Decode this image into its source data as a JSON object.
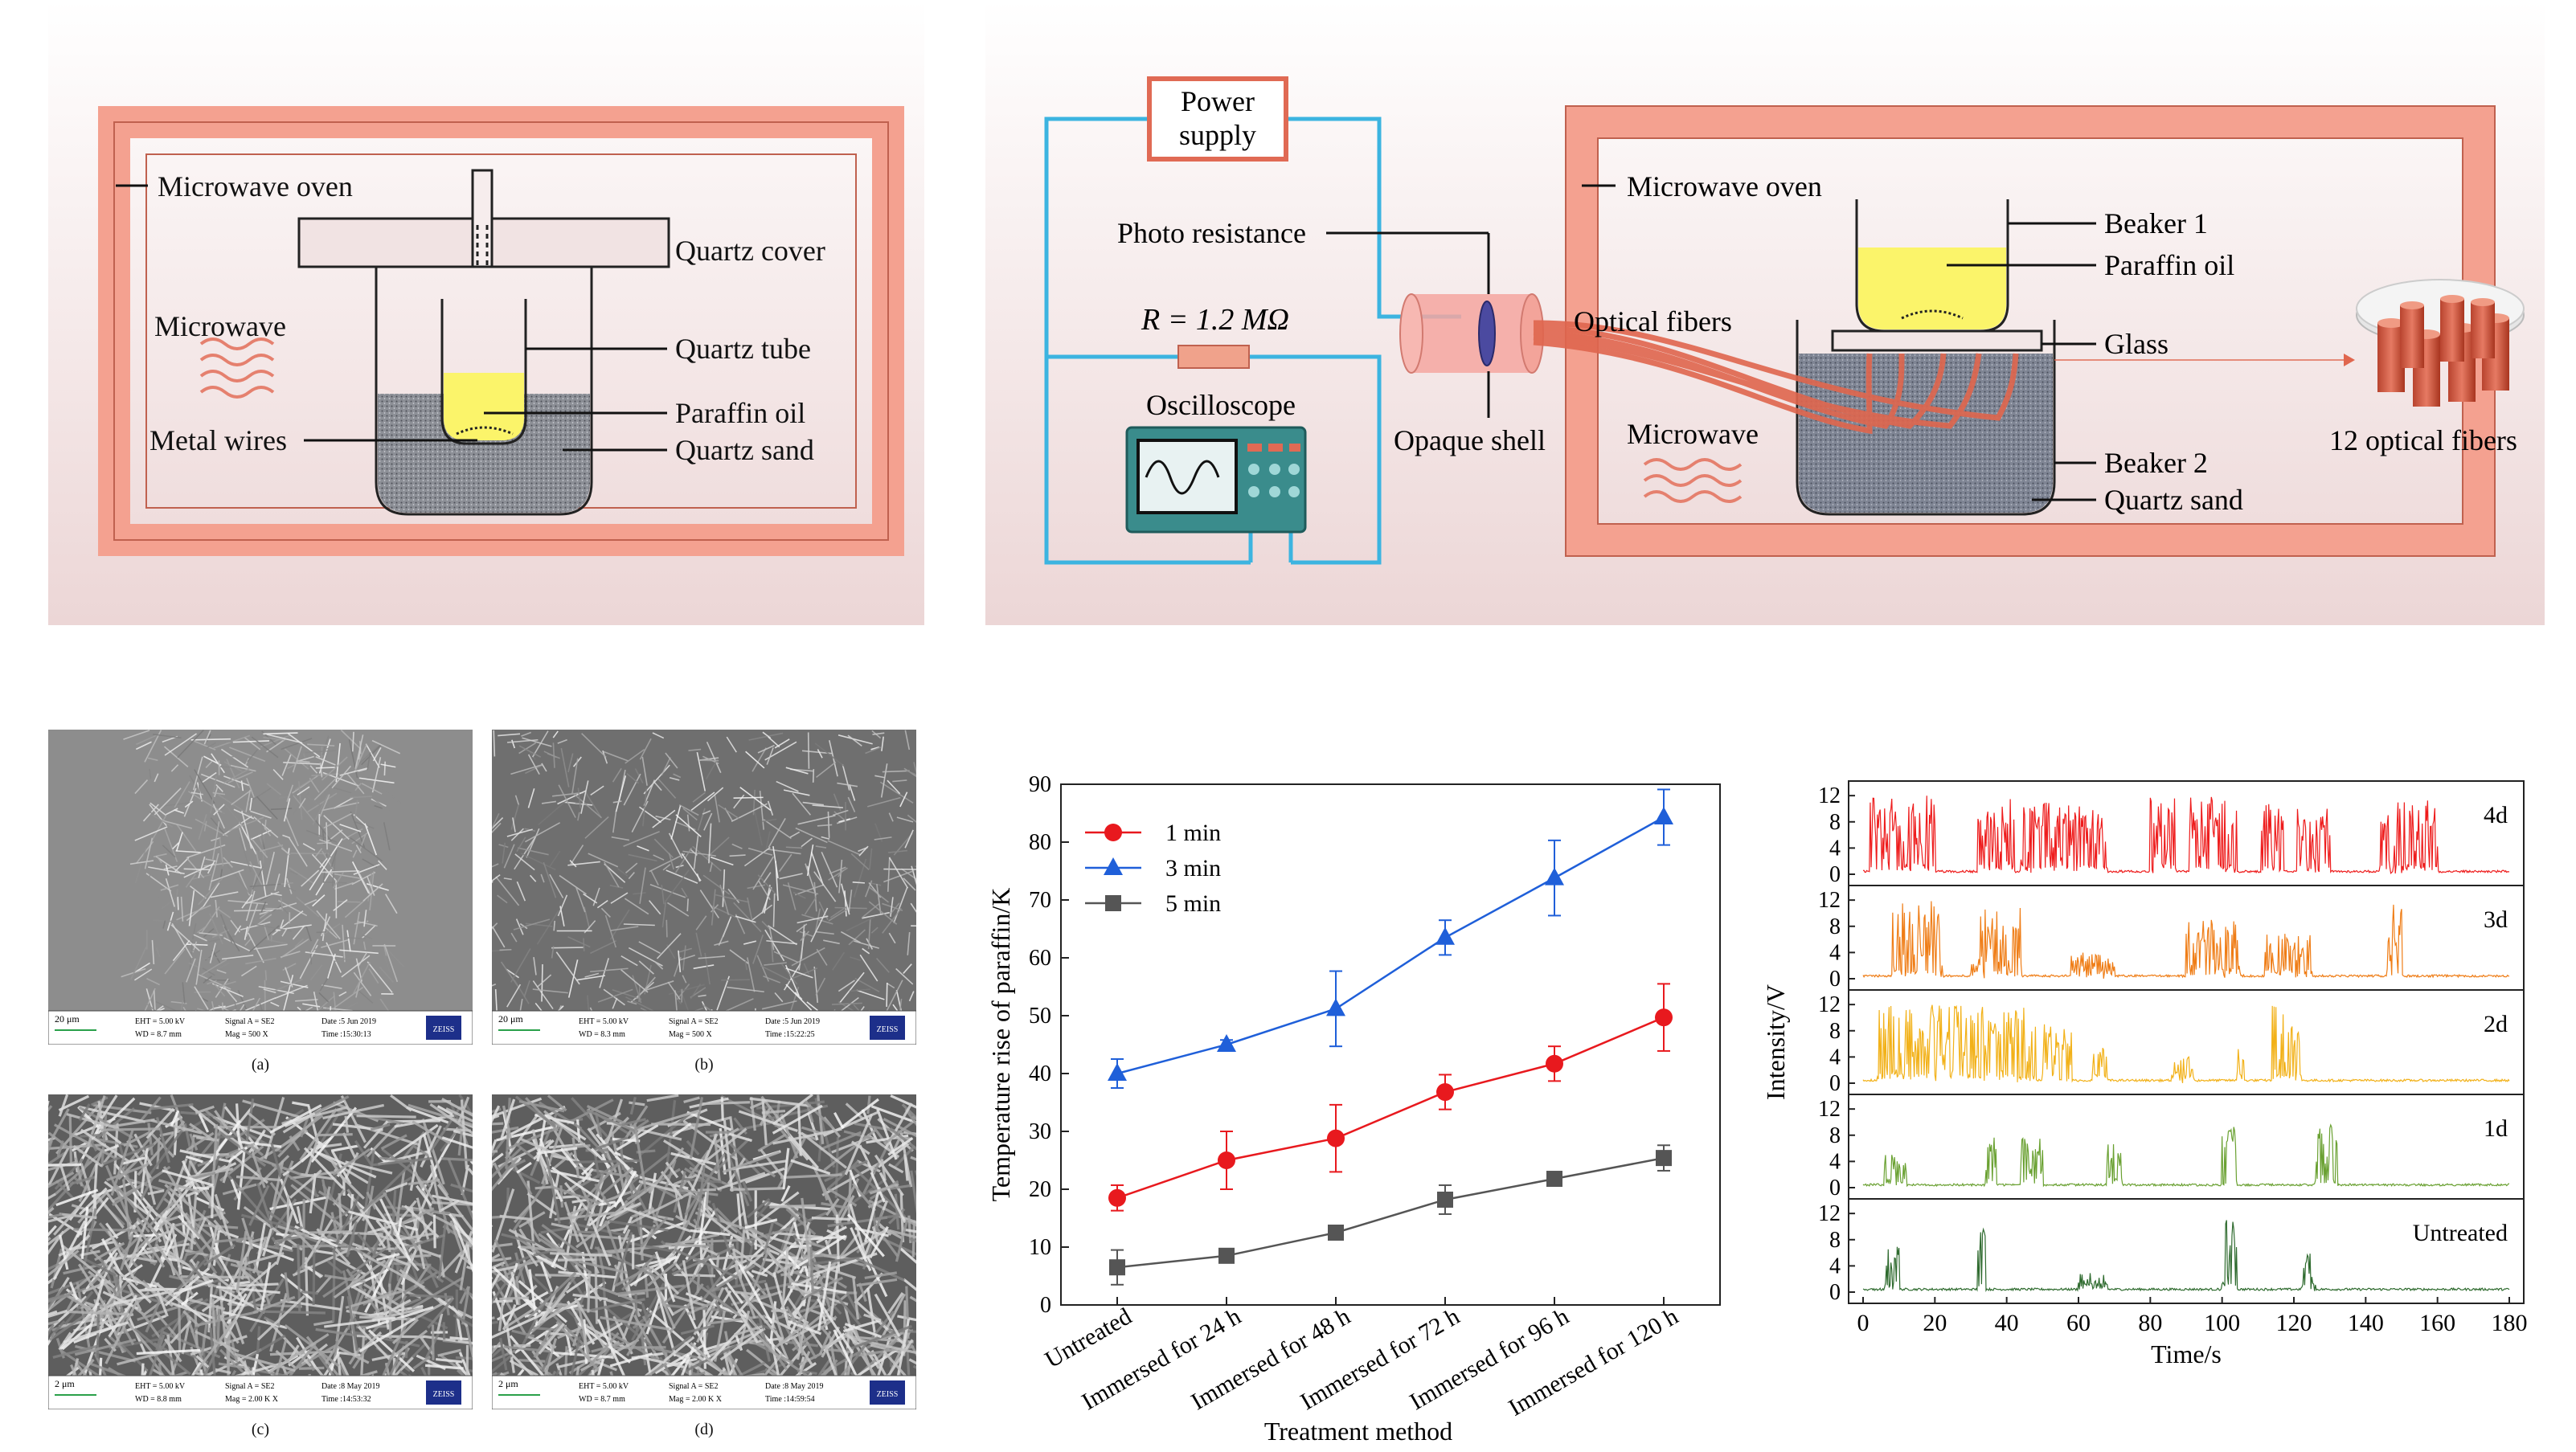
{
  "diagram_a": {
    "labels": {
      "oven": "Microwave oven",
      "cover": "Quartz cover",
      "microwave": "Microwave",
      "tube": "Quartz tube",
      "paraffin": "Paraffin oil",
      "wires": "Metal wires",
      "sand": "Quartz sand"
    }
  },
  "diagram_b": {
    "labels": {
      "power": [
        "Power",
        "supply"
      ],
      "photo": "Photo resistance",
      "resistor": "R = 1.2 MΩ",
      "oscilloscope": "Oscilloscope",
      "opaque": "Opaque shell",
      "fibers": "Optical fibers",
      "oven": "Microwave oven",
      "microwave": "Microwave",
      "beaker1": "Beaker 1",
      "paraffin": "Paraffin oil",
      "glass": "Glass",
      "beaker2": "Beaker 2",
      "sand": "Quartz sand",
      "twelve": "12 optical fibers"
    }
  },
  "sem": {
    "panels": [
      {
        "caption": "(a)",
        "scale": "20 μm",
        "eht": "EHT = 5.00 kV",
        "wd": "WD = 8.7 mm",
        "signal": "Signal A = SE2",
        "mag": "Mag =   500 X",
        "date": "Date :5 Jun 2019",
        "time": "Time :15:30:13",
        "brand": "ZEISS"
      },
      {
        "caption": "(b)",
        "scale": "20 μm",
        "eht": "EHT = 5.00 kV",
        "wd": "WD = 8.3 mm",
        "signal": "Signal A = SE2",
        "mag": "Mag =   500 X",
        "date": "Date :5 Jun 2019",
        "time": "Time :15:22:25",
        "brand": "ZEISS"
      },
      {
        "caption": "(c)",
        "scale": "2 μm",
        "eht": "EHT = 5.00 kV",
        "wd": "WD = 8.8 mm",
        "signal": "Signal A = SE2",
        "mag": "Mag =   2.00 K X",
        "date": "Date :8 May 2019",
        "time": "Time :14:53:32",
        "brand": "ZEISS"
      },
      {
        "caption": "(d)",
        "scale": "2 μm",
        "eht": "EHT = 5.00 kV",
        "wd": "WD = 8.7 mm",
        "signal": "Signal A = SE2",
        "mag": "Mag =   2.00 K X",
        "date": "Date :8 May 2019",
        "time": "Time :14:59:54",
        "brand": "ZEISS"
      }
    ]
  },
  "chart_data": [
    {
      "type": "line",
      "xlabel": "Treatment method",
      "ylabel": "Temperature rise of paraffin/K",
      "ylim": [
        0,
        90
      ],
      "yticks": [
        0,
        10,
        20,
        30,
        40,
        50,
        60,
        70,
        80,
        90
      ],
      "categories": [
        "Untreated",
        "Immersed for 24 h",
        "Immersed for 48 h",
        "Immersed for 72 h",
        "Immersed for 96 h",
        "Immersed for 120 h"
      ],
      "legend_position": "top-left",
      "series": [
        {
          "name": "1 min",
          "color": "#e8191e",
          "marker": "circle",
          "values": [
            18.5,
            25,
            28.8,
            36.8,
            41.7,
            49.7
          ],
          "errors": [
            2.2,
            5,
            5.8,
            3,
            3,
            5.8
          ]
        },
        {
          "name": "3 min",
          "color": "#1f5fd9",
          "marker": "triangle",
          "values": [
            40,
            45,
            51.2,
            63.5,
            73.8,
            84.3
          ],
          "errors": [
            2.5,
            0.8,
            6.5,
            3,
            6.5,
            4.8
          ]
        },
        {
          "name": "5 min",
          "color": "#555555",
          "marker": "square",
          "values": [
            6.5,
            8.5,
            12.5,
            18.2,
            21.8,
            25.4
          ],
          "errors": [
            3,
            0.5,
            0.8,
            2.5,
            0.8,
            2.2
          ]
        }
      ]
    },
    {
      "type": "line",
      "xlabel": "Time/s",
      "ylabel": "Intensity/V",
      "xlim": [
        0,
        180
      ],
      "xticks": [
        0,
        20,
        40,
        60,
        80,
        100,
        120,
        140,
        160,
        180
      ],
      "ylim": [
        0,
        13
      ],
      "yticks": [
        0,
        4,
        8,
        12
      ],
      "series": [
        {
          "name": "4d",
          "color": "#ee1c1c",
          "bursts": [
            [
              2,
              20,
              12
            ],
            [
              32,
              42,
              12
            ],
            [
              44,
              53,
              11
            ],
            [
              53,
              68,
              11
            ],
            [
              80,
              87,
              12
            ],
            [
              91,
              104,
              12
            ],
            [
              111,
              117,
              11
            ],
            [
              121,
              130,
              10
            ],
            [
              144,
              160,
              12
            ]
          ]
        },
        {
          "name": "3d",
          "color": "#ef7d16",
          "bursts": [
            [
              8,
              22,
              12
            ],
            [
              30,
              44,
              11
            ],
            [
              58,
              70,
              4
            ],
            [
              90,
              105,
              9
            ],
            [
              112,
              125,
              7
            ],
            [
              146,
              150,
              12
            ]
          ]
        },
        {
          "name": "2d",
          "color": "#f2b118",
          "bursts": [
            [
              4,
              32,
              12
            ],
            [
              32,
              48,
              12
            ],
            [
              50,
              58,
              9
            ],
            [
              64,
              68,
              6
            ],
            [
              86,
              92,
              4
            ],
            [
              104,
              106,
              6
            ],
            [
              114,
              122,
              12
            ]
          ]
        },
        {
          "name": "1d",
          "color": "#6aa132",
          "bursts": [
            [
              6,
              12,
              5
            ],
            [
              34,
              37,
              9
            ],
            [
              44,
              50,
              8
            ],
            [
              68,
              72,
              7
            ],
            [
              100,
              104,
              10
            ],
            [
              126,
              132,
              10
            ]
          ]
        },
        {
          "name": "Untreated",
          "color": "#2f6b2f",
          "bursts": [
            [
              6,
              10,
              7
            ],
            [
              32,
              34,
              10
            ],
            [
              60,
              68,
              3
            ],
            [
              100,
              104,
              11
            ],
            [
              122,
              126,
              6
            ]
          ]
        }
      ]
    }
  ]
}
